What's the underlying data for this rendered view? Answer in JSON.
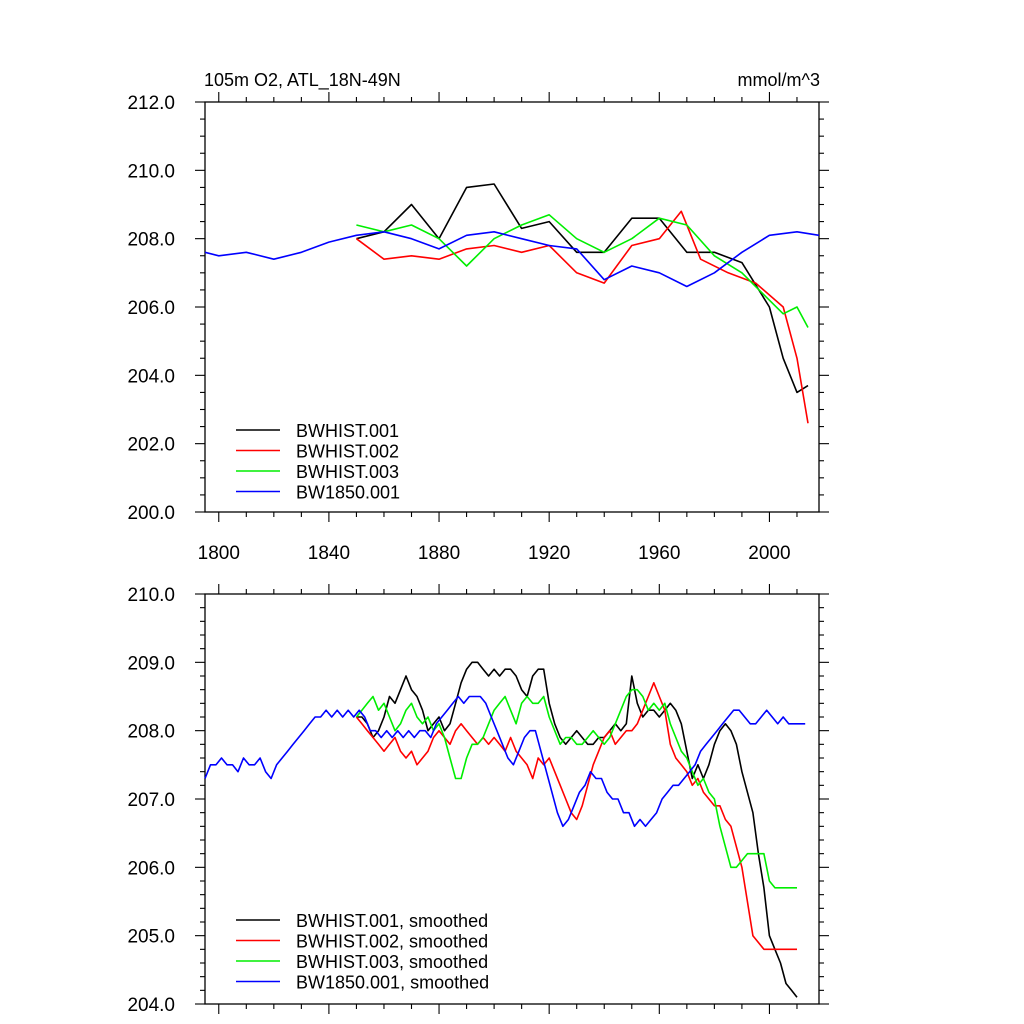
{
  "colors": {
    "black": "#000000",
    "red": "#ff0000",
    "green": "#00ee00",
    "blue": "#0000ff"
  },
  "chart_data": [
    {
      "type": "line",
      "title": "105m O2, ATL_18N-49N",
      "units": "mmol/m^3",
      "xlim": [
        1795,
        2018
      ],
      "ylim": [
        200,
        212
      ],
      "xticks": [
        1800,
        1840,
        1880,
        1920,
        1960,
        2000
      ],
      "xtick_labels": [
        "1800",
        "1840",
        "1880",
        "1920",
        "1960",
        "2000"
      ],
      "yticks": [
        200,
        202,
        204,
        206,
        208,
        210,
        212
      ],
      "ytick_labels": [
        "200.0",
        "202.0",
        "204.0",
        "206.0",
        "208.0",
        "210.0",
        "212.0"
      ],
      "legend_position": "bottom-left",
      "series": [
        {
          "name": "BWHIST.001",
          "color": "#000000",
          "x": [
            1850,
            1860,
            1870,
            1880,
            1890,
            1900,
            1910,
            1920,
            1930,
            1940,
            1950,
            1960,
            1970,
            1980,
            1990,
            2000,
            2005,
            2010,
            2014
          ],
          "y": [
            208.0,
            208.2,
            209.0,
            208.0,
            209.5,
            209.6,
            208.3,
            208.5,
            207.6,
            207.6,
            208.6,
            208.6,
            207.6,
            207.6,
            207.3,
            206.0,
            204.5,
            203.5,
            203.7
          ]
        },
        {
          "name": "BWHIST.002",
          "color": "#ff0000",
          "x": [
            1850,
            1860,
            1870,
            1880,
            1890,
            1900,
            1910,
            1920,
            1930,
            1940,
            1950,
            1960,
            1968,
            1975,
            1985,
            1995,
            2005,
            2010,
            2014
          ],
          "y": [
            208.0,
            207.4,
            207.5,
            207.4,
            207.7,
            207.8,
            207.6,
            207.8,
            207.0,
            206.7,
            207.8,
            208.0,
            208.8,
            207.4,
            207.0,
            206.7,
            206.0,
            204.5,
            202.6
          ]
        },
        {
          "name": "BWHIST.003",
          "color": "#00ee00",
          "x": [
            1850,
            1860,
            1870,
            1880,
            1890,
            1900,
            1910,
            1920,
            1930,
            1940,
            1950,
            1960,
            1970,
            1980,
            1990,
            2000,
            2005,
            2010,
            2014
          ],
          "y": [
            208.4,
            208.2,
            208.4,
            208.0,
            207.2,
            208.0,
            208.4,
            208.7,
            208.0,
            207.6,
            208.0,
            208.6,
            208.4,
            207.5,
            207.0,
            206.2,
            205.8,
            206.0,
            205.4
          ]
        },
        {
          "name": "BW1850.001",
          "color": "#0000ff",
          "x": [
            1795,
            1800,
            1810,
            1820,
            1830,
            1840,
            1850,
            1860,
            1870,
            1880,
            1890,
            1900,
            1910,
            1920,
            1930,
            1940,
            1950,
            1960,
            1970,
            1980,
            1990,
            2000,
            2010,
            2018
          ],
          "y": [
            207.6,
            207.5,
            207.6,
            207.4,
            207.6,
            207.9,
            208.1,
            208.2,
            208.0,
            207.7,
            208.1,
            208.2,
            208.0,
            207.8,
            207.7,
            206.8,
            207.2,
            207.0,
            206.6,
            207.0,
            207.6,
            208.1,
            208.2,
            208.1
          ]
        }
      ],
      "legend": [
        "BWHIST.001",
        "BWHIST.002",
        "BWHIST.003",
        "BW1850.001"
      ]
    },
    {
      "type": "line",
      "title": "",
      "xlim": [
        1795,
        2018
      ],
      "ylim": [
        204,
        210
      ],
      "yticks": [
        204,
        205,
        206,
        207,
        208,
        209,
        210
      ],
      "ytick_labels": [
        "204.0",
        "205.0",
        "206.0",
        "207.0",
        "208.0",
        "209.0",
        "210.0"
      ],
      "legend_position": "bottom-left",
      "series": [
        {
          "name": "BWHIST.001, smoothed",
          "color": "#000000",
          "x": [
            1850,
            1852,
            1854,
            1856,
            1858,
            1860,
            1862,
            1864,
            1866,
            1868,
            1870,
            1872,
            1874,
            1876,
            1878,
            1880,
            1882,
            1884,
            1886,
            1888,
            1890,
            1892,
            1894,
            1896,
            1898,
            1900,
            1902,
            1904,
            1906,
            1908,
            1910,
            1912,
            1914,
            1916,
            1918,
            1920,
            1922,
            1924,
            1926,
            1928,
            1930,
            1932,
            1934,
            1936,
            1938,
            1940,
            1942,
            1944,
            1946,
            1948,
            1950,
            1952,
            1954,
            1956,
            1958,
            1960,
            1962,
            1964,
            1966,
            1968,
            1970,
            1972,
            1974,
            1976,
            1978,
            1980,
            1982,
            1984,
            1986,
            1988,
            1990,
            1992,
            1994,
            1996,
            1998,
            2000,
            2002,
            2004,
            2006,
            2008,
            2010
          ],
          "y": [
            208.2,
            208.2,
            208.1,
            207.9,
            208.0,
            208.2,
            208.5,
            208.4,
            208.6,
            208.8,
            208.6,
            208.5,
            208.3,
            208.0,
            208.1,
            208.2,
            208.0,
            208.1,
            208.4,
            208.7,
            208.9,
            209.0,
            209.0,
            208.9,
            208.8,
            208.9,
            208.8,
            208.9,
            208.9,
            208.8,
            208.6,
            208.5,
            208.8,
            208.9,
            208.9,
            208.4,
            208.1,
            207.9,
            207.8,
            207.9,
            208.0,
            207.9,
            207.8,
            207.8,
            207.9,
            207.9,
            208.0,
            208.1,
            208.0,
            208.1,
            208.8,
            208.4,
            208.2,
            208.3,
            208.3,
            208.2,
            208.3,
            208.4,
            208.3,
            208.1,
            207.7,
            207.3,
            207.5,
            207.3,
            207.5,
            207.8,
            208.0,
            208.1,
            208.0,
            207.8,
            207.4,
            207.1,
            206.8,
            206.2,
            205.7,
            205.0,
            204.8,
            204.6,
            204.3,
            204.2,
            204.1
          ]
        },
        {
          "name": "BWHIST.002, smoothed",
          "color": "#ff0000",
          "x": [
            1850,
            1852,
            1854,
            1856,
            1858,
            1860,
            1862,
            1864,
            1866,
            1868,
            1870,
            1872,
            1874,
            1876,
            1878,
            1880,
            1882,
            1884,
            1886,
            1888,
            1890,
            1892,
            1894,
            1896,
            1898,
            1900,
            1902,
            1904,
            1906,
            1908,
            1910,
            1912,
            1914,
            1916,
            1918,
            1920,
            1922,
            1924,
            1926,
            1928,
            1930,
            1932,
            1934,
            1936,
            1938,
            1940,
            1942,
            1944,
            1946,
            1948,
            1950,
            1952,
            1954,
            1956,
            1958,
            1960,
            1962,
            1964,
            1966,
            1968,
            1970,
            1972,
            1974,
            1976,
            1978,
            1980,
            1982,
            1984,
            1986,
            1988,
            1990,
            1992,
            1994,
            1996,
            1998,
            2000,
            2002,
            2004,
            2006,
            2008,
            2010
          ],
          "y": [
            208.2,
            208.1,
            208.0,
            207.9,
            207.8,
            207.7,
            207.8,
            207.9,
            207.7,
            207.6,
            207.7,
            207.5,
            207.6,
            207.7,
            207.9,
            208.0,
            207.9,
            207.8,
            208.0,
            208.1,
            208.0,
            207.9,
            207.8,
            207.9,
            207.8,
            207.9,
            207.8,
            207.7,
            207.9,
            207.7,
            207.6,
            207.5,
            207.3,
            207.6,
            207.5,
            207.6,
            207.4,
            207.2,
            207.0,
            206.8,
            206.7,
            206.9,
            207.2,
            207.5,
            207.7,
            207.9,
            208.0,
            207.8,
            207.9,
            208.0,
            208.0,
            208.1,
            208.3,
            208.5,
            208.7,
            208.5,
            208.3,
            207.8,
            207.6,
            207.5,
            207.4,
            207.2,
            207.3,
            207.1,
            207.0,
            206.9,
            206.9,
            206.7,
            206.6,
            206.3,
            206.0,
            205.5,
            205.0,
            204.9,
            204.8,
            204.8,
            204.8,
            204.8,
            204.8,
            204.8,
            204.8
          ]
        },
        {
          "name": "BWHIST.003, smoothed",
          "color": "#00ee00",
          "x": [
            1850,
            1852,
            1854,
            1856,
            1858,
            1860,
            1862,
            1864,
            1866,
            1868,
            1870,
            1872,
            1874,
            1876,
            1878,
            1880,
            1882,
            1884,
            1886,
            1888,
            1890,
            1892,
            1894,
            1896,
            1898,
            1900,
            1902,
            1904,
            1906,
            1908,
            1910,
            1912,
            1914,
            1916,
            1918,
            1920,
            1922,
            1924,
            1926,
            1928,
            1930,
            1932,
            1934,
            1936,
            1938,
            1940,
            1942,
            1944,
            1946,
            1948,
            1950,
            1952,
            1954,
            1956,
            1958,
            1960,
            1962,
            1964,
            1966,
            1968,
            1970,
            1972,
            1974,
            1976,
            1978,
            1980,
            1982,
            1984,
            1986,
            1988,
            1990,
            1992,
            1994,
            1996,
            1998,
            2000,
            2002,
            2004,
            2006,
            2008,
            2010
          ],
          "y": [
            208.2,
            208.3,
            208.4,
            208.5,
            208.3,
            208.4,
            208.2,
            208.0,
            208.1,
            208.3,
            208.4,
            208.2,
            208.1,
            208.2,
            208.0,
            208.1,
            207.9,
            207.6,
            207.3,
            207.3,
            207.6,
            207.8,
            207.8,
            207.9,
            208.1,
            208.3,
            208.4,
            208.5,
            208.3,
            208.1,
            208.4,
            208.5,
            208.4,
            208.4,
            208.5,
            208.2,
            208.0,
            207.8,
            207.9,
            207.9,
            207.8,
            207.8,
            207.9,
            208.0,
            207.9,
            207.8,
            207.9,
            208.1,
            208.3,
            208.5,
            208.6,
            208.6,
            208.5,
            208.3,
            208.4,
            208.3,
            208.4,
            208.1,
            207.9,
            207.7,
            207.6,
            207.4,
            207.2,
            207.3,
            207.1,
            207.0,
            206.6,
            206.3,
            206.0,
            206.0,
            206.1,
            206.2,
            206.2,
            206.2,
            206.2,
            205.8,
            205.7,
            205.7,
            205.7,
            205.7,
            205.7
          ]
        },
        {
          "name": "BW1850.001, smoothed",
          "color": "#0000ff",
          "x": [
            1795,
            1797,
            1799,
            1801,
            1803,
            1805,
            1807,
            1809,
            1811,
            1813,
            1815,
            1817,
            1819,
            1821,
            1823,
            1825,
            1827,
            1829,
            1831,
            1833,
            1835,
            1837,
            1839,
            1841,
            1843,
            1845,
            1847,
            1849,
            1851,
            1853,
            1855,
            1857,
            1859,
            1861,
            1863,
            1865,
            1867,
            1869,
            1871,
            1873,
            1875,
            1877,
            1879,
            1881,
            1883,
            1885,
            1887,
            1889,
            1891,
            1893,
            1895,
            1897,
            1899,
            1901,
            1903,
            1905,
            1907,
            1909,
            1911,
            1913,
            1915,
            1917,
            1919,
            1921,
            1923,
            1925,
            1927,
            1929,
            1931,
            1933,
            1935,
            1937,
            1939,
            1941,
            1943,
            1945,
            1947,
            1949,
            1951,
            1953,
            1955,
            1957,
            1959,
            1961,
            1963,
            1965,
            1967,
            1969,
            1971,
            1973,
            1975,
            1977,
            1979,
            1981,
            1983,
            1985,
            1987,
            1989,
            1991,
            1993,
            1995,
            1997,
            1999,
            2001,
            2003,
            2005,
            2007,
            2009,
            2011,
            2013
          ],
          "y": [
            207.3,
            207.5,
            207.5,
            207.6,
            207.5,
            207.5,
            207.4,
            207.6,
            207.5,
            207.5,
            207.6,
            207.4,
            207.3,
            207.5,
            207.6,
            207.7,
            207.8,
            207.9,
            208.0,
            208.1,
            208.2,
            208.2,
            208.3,
            208.2,
            208.3,
            208.2,
            208.3,
            208.2,
            208.3,
            208.2,
            208.0,
            208.0,
            207.9,
            208.0,
            207.9,
            208.0,
            207.9,
            208.0,
            207.9,
            208.0,
            208.0,
            207.9,
            208.1,
            208.2,
            208.3,
            208.4,
            208.5,
            208.4,
            208.5,
            208.5,
            208.5,
            208.4,
            208.2,
            208.0,
            207.8,
            207.6,
            207.5,
            207.7,
            207.9,
            208.0,
            208.0,
            207.7,
            207.4,
            207.1,
            206.8,
            206.6,
            206.7,
            206.9,
            207.1,
            207.2,
            207.4,
            207.3,
            207.3,
            207.1,
            207.0,
            207.0,
            206.8,
            206.8,
            206.6,
            206.7,
            206.6,
            206.7,
            206.8,
            207.0,
            207.1,
            207.2,
            207.2,
            207.3,
            207.4,
            207.5,
            207.7,
            207.8,
            207.9,
            208.0,
            208.1,
            208.2,
            208.3,
            208.3,
            208.2,
            208.1,
            208.1,
            208.2,
            208.3,
            208.2,
            208.1,
            208.2,
            208.1,
            208.1,
            208.1,
            208.1
          ]
        }
      ],
      "legend": [
        "BWHIST.001, smoothed",
        "BWHIST.002, smoothed",
        "BWHIST.003, smoothed",
        "BW1850.001, smoothed"
      ]
    }
  ]
}
